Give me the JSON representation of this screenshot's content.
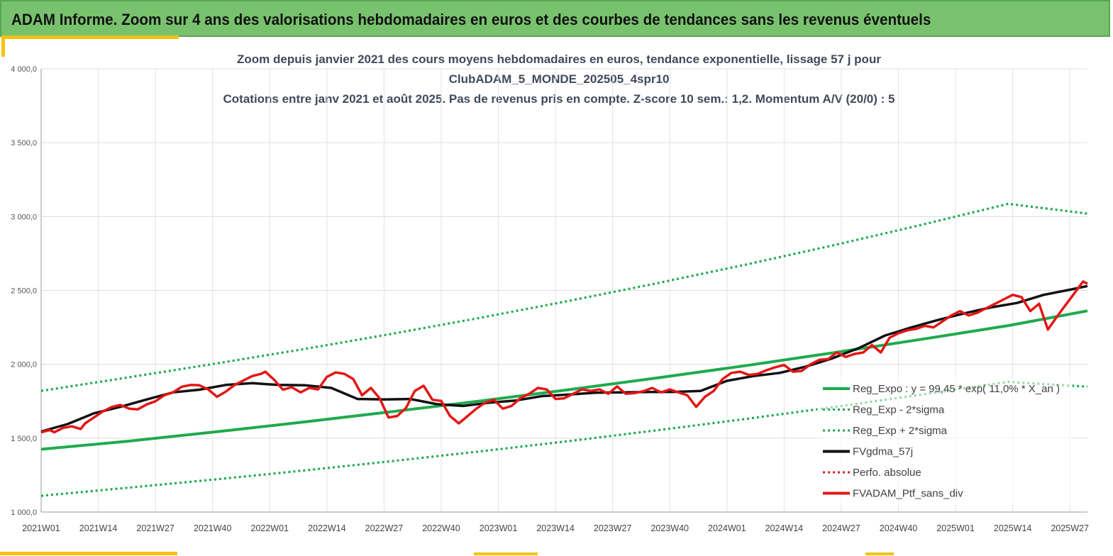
{
  "banner": {
    "title": "ADAM Informe. Zoom sur 4 ans des valorisations hebdomadaires en euros et des courbes de tendances sans les revenus éventuels"
  },
  "chart_data": {
    "type": "line",
    "title_lines": [
      "Zoom depuis janvier 2021 des cours moyens hebdomadaires  en euros, tendance exponentielle, lissage 57 j pour",
      "ClubADAM_5_MONDE_202505_4spr10",
      "Cotations  entre janv 2021 et août 2025. Pas de revenus pris en compte. Z-score 10 sem.: 1,2. Momentum A/V (20/0) : 5"
    ],
    "ylim": [
      1000,
      4000
    ],
    "y_ticks": [
      "1 000,0",
      "1 500,0",
      "2 000,0",
      "2 500,0",
      "3 000,0",
      "3 500,0",
      "4 000,0"
    ],
    "y_tick_values": [
      1000,
      1500,
      2000,
      2500,
      3000,
      3500,
      4000
    ],
    "x_range": [
      0,
      238
    ],
    "x_ticks": [
      "2021W01",
      "2021W14",
      "2021W27",
      "2021W40",
      "2022W01",
      "2022W14",
      "2022W27",
      "2022W40",
      "2023W01",
      "2023W14",
      "2023W27",
      "2023W40",
      "2024W01",
      "2024W14",
      "2024W27",
      "2024W40",
      "2025W01",
      "2025W14",
      "2025W27"
    ],
    "x_tick_positions": [
      0,
      13,
      26,
      39,
      52,
      65,
      78,
      91,
      104,
      117,
      130,
      143,
      156,
      169,
      182,
      195,
      208,
      221,
      234
    ],
    "grid": true,
    "legend_position": "bottom-right",
    "series": [
      {
        "name": "Reg_Expo : y = 99,45 * exp( 11,0% *  X_an )",
        "style": "solid",
        "color": "#1faa4e",
        "x": [
          0,
          20,
          40,
          60,
          80,
          100,
          120,
          140,
          160,
          180,
          200,
          220,
          238
        ],
        "values": [
          1425,
          1480,
          1544,
          1610,
          1680,
          1752,
          1828,
          1907,
          1990,
          2077,
          2168,
          2262,
          2362
        ]
      },
      {
        "name": "Reg_Exp - 2*sigma",
        "style": "dotted",
        "color": "#1faa4e",
        "x": [
          0,
          20,
          40,
          60,
          80,
          100,
          120,
          140,
          160,
          180,
          200,
          220,
          238
        ],
        "values": [
          1110,
          1165,
          1222,
          1282,
          1345,
          1411,
          1480,
          1553,
          1629,
          1709,
          1794,
          1881,
          1848
        ]
      },
      {
        "name": "Reg_Exp + 2*sigma",
        "style": "dotted",
        "color": "#1faa4e",
        "x": [
          0,
          20,
          40,
          60,
          80,
          100,
          120,
          140,
          160,
          180,
          200,
          220,
          238
        ],
        "values": [
          1820,
          1912,
          2006,
          2104,
          2207,
          2315,
          2429,
          2548,
          2673,
          2804,
          2942,
          3086,
          3020
        ]
      },
      {
        "name": "FVgdma_57j",
        "style": "solid",
        "color": "#111111",
        "x": [
          0,
          6,
          12,
          18,
          24,
          30,
          36,
          42,
          48,
          54,
          60,
          66,
          72,
          78,
          84,
          90,
          96,
          102,
          108,
          114,
          120,
          126,
          132,
          138,
          144,
          150,
          156,
          162,
          168,
          174,
          180,
          186,
          192,
          198,
          204,
          210,
          216,
          222,
          228,
          234,
          238
        ],
        "values": [
          1545,
          1595,
          1668,
          1712,
          1762,
          1810,
          1828,
          1860,
          1872,
          1860,
          1858,
          1840,
          1765,
          1762,
          1765,
          1730,
          1718,
          1740,
          1755,
          1785,
          1795,
          1808,
          1810,
          1812,
          1813,
          1820,
          1888,
          1920,
          1942,
          1985,
          2040,
          2110,
          2195,
          2250,
          2300,
          2345,
          2385,
          2415,
          2470,
          2505,
          2530
        ]
      },
      {
        "name": "Perfo. absolue",
        "style": "dotted",
        "color": "#d62222",
        "x": [],
        "values": []
      },
      {
        "name": "FVADAM_Ptf_sans_div",
        "style": "solid",
        "color": "#e31616",
        "x": [
          0,
          2,
          3,
          5,
          7,
          9,
          10,
          12,
          14,
          16,
          18,
          20,
          22,
          24,
          26,
          28,
          30,
          32,
          34,
          36,
          38,
          40,
          42,
          44,
          46,
          48,
          50,
          51,
          53,
          55,
          57,
          59,
          61,
          63,
          65,
          67,
          69,
          71,
          73,
          75,
          77,
          79,
          81,
          83,
          85,
          87,
          89,
          91,
          93,
          95,
          97,
          99,
          101,
          103,
          105,
          107,
          109,
          111,
          113,
          115,
          117,
          119,
          121,
          123,
          125,
          127,
          129,
          131,
          133,
          135,
          137,
          139,
          141,
          143,
          145,
          147,
          149,
          151,
          153,
          155,
          157,
          159,
          161,
          163,
          165,
          167,
          169,
          171,
          173,
          175,
          177,
          179,
          181,
          183,
          185,
          187,
          189,
          191,
          193,
          195,
          197,
          199,
          201,
          203,
          205,
          207,
          209,
          211,
          213,
          215,
          217,
          219,
          221,
          223,
          225,
          227,
          229,
          231,
          233,
          235,
          237,
          238
        ],
        "values": [
          1540,
          1555,
          1540,
          1570,
          1580,
          1562,
          1600,
          1640,
          1680,
          1710,
          1725,
          1700,
          1695,
          1728,
          1750,
          1790,
          1810,
          1848,
          1860,
          1858,
          1830,
          1780,
          1815,
          1860,
          1890,
          1920,
          1935,
          1950,
          1895,
          1828,
          1845,
          1810,
          1840,
          1830,
          1915,
          1945,
          1935,
          1900,
          1790,
          1840,
          1770,
          1640,
          1650,
          1705,
          1820,
          1855,
          1760,
          1752,
          1650,
          1600,
          1650,
          1700,
          1740,
          1760,
          1700,
          1718,
          1770,
          1800,
          1840,
          1830,
          1765,
          1770,
          1800,
          1830,
          1820,
          1830,
          1800,
          1850,
          1800,
          1805,
          1818,
          1840,
          1810,
          1830,
          1810,
          1790,
          1712,
          1780,
          1820,
          1900,
          1942,
          1950,
          1928,
          1935,
          1960,
          1980,
          1995,
          1950,
          1955,
          2000,
          2030,
          2035,
          2080,
          2050,
          2070,
          2080,
          2130,
          2080,
          2180,
          2210,
          2230,
          2240,
          2260,
          2250,
          2290,
          2330,
          2360,
          2330,
          2350,
          2380,
          2410,
          2440,
          2470,
          2455,
          2360,
          2410,
          2235,
          2320,
          2400,
          2480,
          2560,
          2545
        ]
      }
    ]
  }
}
